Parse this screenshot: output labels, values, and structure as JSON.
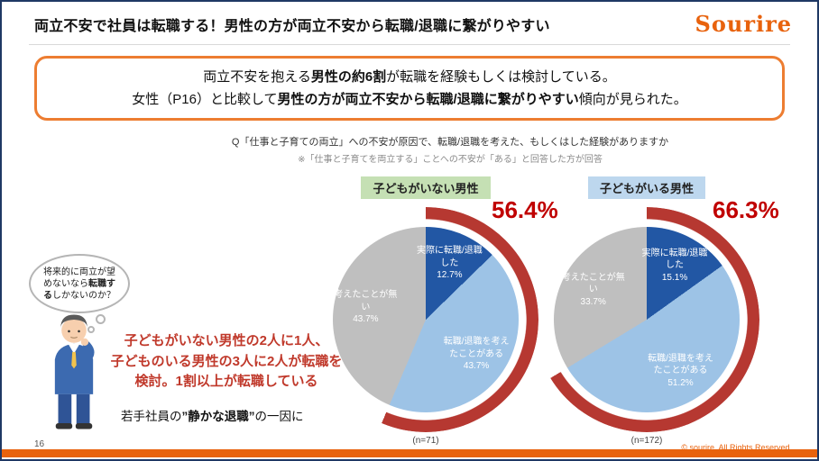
{
  "slide": {
    "title": "両立不安で社員は転職する！男性の方が両立不安から転職/退職に繋がりやすい",
    "logo_text": "Sourire",
    "page_number": "16",
    "copyright": "© sourire. All Rights Reserved.",
    "accent_orange": "#e8620d",
    "border_navy": "#1f3864"
  },
  "summary_box": {
    "line1_parts": [
      {
        "t": "両立不安を抱える",
        "b": false
      },
      {
        "t": "男性の約6割",
        "b": true
      },
      {
        "t": "が転職を経験もしくは検討している。",
        "b": false
      }
    ],
    "line2_parts": [
      {
        "t": "女性（P16）と比較して",
        "b": false
      },
      {
        "t": "男性の方が両立不安から転職/退職に繋がりやすい",
        "b": true
      },
      {
        "t": "傾向が見られた。",
        "b": false
      }
    ]
  },
  "question": {
    "text": "Q「仕事と子育ての両立」への不安が原因で、転職/退職を考えた、もしくはした経験がありますか",
    "note": "※「仕事と子育てを両立する」ことへの不安が「ある」と回答した方が回答"
  },
  "left_annotations": {
    "thought_parts": [
      {
        "t": "将来的に両立が望めないなら",
        "b": false
      },
      {
        "t": "転職する",
        "b": true
      },
      {
        "t": "しかないのか？",
        "b": false
      }
    ],
    "highlight_lines": [
      "子どもがいない男性の2人に1人、",
      "子どものいる男性の3人に2人が転職を",
      "検討。1割以上が転職している"
    ],
    "conclusion_parts": [
      {
        "t": "若手社員の",
        "b": false
      },
      {
        "t": "”静かな退職”",
        "b": true
      },
      {
        "t": "の一因に",
        "b": false
      }
    ]
  },
  "chart_data": [
    {
      "type": "pie",
      "title": "子どもがいない男性",
      "title_bg": "#c5e0b4",
      "highlight_pct": "56.4%",
      "arc_pct": 56.4,
      "arc_color": "#b63831",
      "n_label": "(n=71)",
      "legend_position": "inside",
      "slices": [
        {
          "label": "実際に転職/退職した",
          "value": 12.7,
          "color": "#2257a4"
        },
        {
          "label": "転職/退職を考えたことがある",
          "value": 43.7,
          "color": "#9dc3e6"
        },
        {
          "label": "考えたことが無い",
          "value": 43.7,
          "color": "#bfbfbf"
        }
      ]
    },
    {
      "type": "pie",
      "title": "子どもがいる男性",
      "title_bg": "#bdd7ee",
      "highlight_pct": "66.3%",
      "arc_pct": 66.3,
      "arc_color": "#b63831",
      "n_label": "(n=172)",
      "legend_position": "inside",
      "slices": [
        {
          "label": "実際に転職/退職した",
          "value": 15.1,
          "color": "#2257a4"
        },
        {
          "label": "転職/退職を考えたことがある",
          "value": 51.2,
          "color": "#9dc3e6"
        },
        {
          "label": "考えたことが無い",
          "value": 33.7,
          "color": "#bfbfbf"
        }
      ]
    }
  ]
}
